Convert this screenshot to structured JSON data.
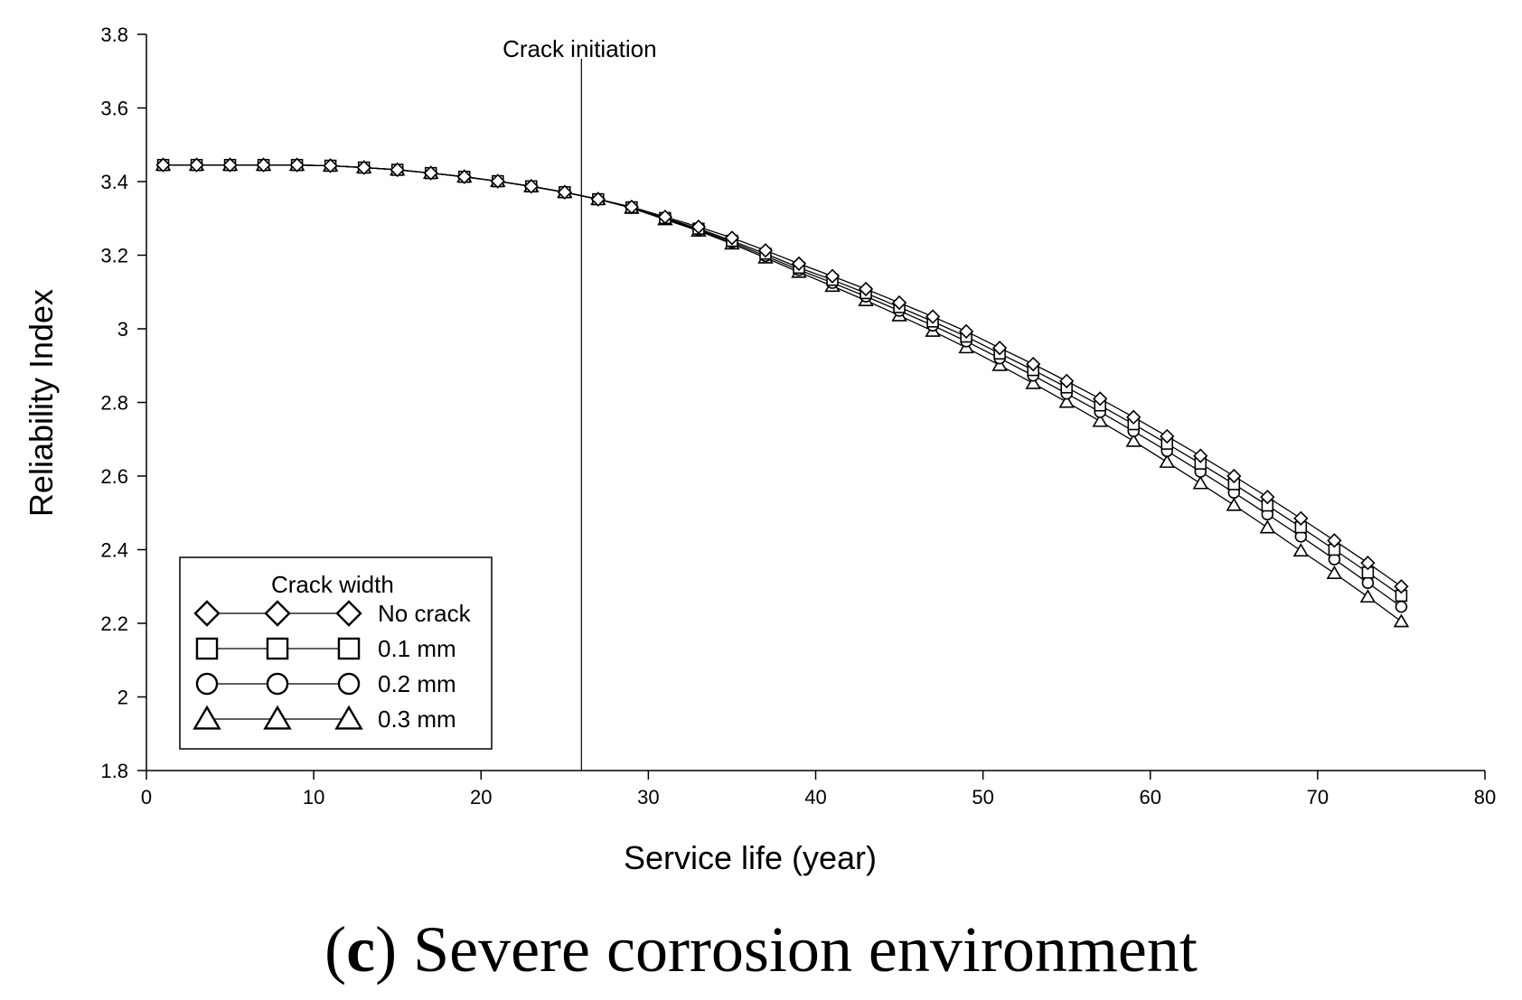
{
  "chart_data": {
    "type": "line",
    "xlabel": "Service life (year)",
    "ylabel": "Reliability Index",
    "xlim": [
      0,
      80
    ],
    "ylim": [
      1.8,
      3.8
    ],
    "xticks": [
      0,
      10,
      20,
      30,
      40,
      50,
      60,
      70,
      80
    ],
    "yticks": [
      1.8,
      2,
      2.2,
      2.4,
      2.6,
      2.8,
      3,
      3.2,
      3.4,
      3.6,
      3.8
    ],
    "ytick_labels": [
      "1.8",
      "2",
      "2.2",
      "2.4",
      "2.6",
      "2.8",
      "3",
      "3.2",
      "3.4",
      "3.6",
      "3.8"
    ],
    "grid": false,
    "annotation": {
      "label": "Crack initiation",
      "x": 26
    },
    "legend": {
      "title": "Crack width",
      "position": "bottom-left"
    },
    "x": [
      1,
      3,
      5,
      7,
      9,
      11,
      13,
      15,
      17,
      19,
      21,
      23,
      25,
      27,
      29,
      31,
      33,
      35,
      37,
      39,
      41,
      43,
      45,
      47,
      49,
      51,
      53,
      55,
      57,
      59,
      61,
      63,
      65,
      67,
      69,
      71,
      73,
      75
    ],
    "series": [
      {
        "name": "No crack",
        "marker": "diamond",
        "values": [
          3.445,
          3.445,
          3.445,
          3.445,
          3.445,
          3.443,
          3.438,
          3.432,
          3.423,
          3.413,
          3.401,
          3.387,
          3.371,
          3.352,
          3.331,
          3.304,
          3.277,
          3.247,
          3.213,
          3.177,
          3.143,
          3.108,
          3.071,
          3.033,
          2.993,
          2.948,
          2.904,
          2.858,
          2.81,
          2.76,
          2.708,
          2.655,
          2.6,
          2.543,
          2.485,
          2.425,
          2.364,
          2.3
        ]
      },
      {
        "name": "0.1 mm",
        "marker": "square",
        "values": [
          3.445,
          3.445,
          3.445,
          3.445,
          3.445,
          3.443,
          3.438,
          3.432,
          3.423,
          3.413,
          3.401,
          3.387,
          3.371,
          3.352,
          3.33,
          3.301,
          3.272,
          3.239,
          3.204,
          3.166,
          3.133,
          3.097,
          3.059,
          3.02,
          2.979,
          2.933,
          2.888,
          2.841,
          2.792,
          2.741,
          2.688,
          2.634,
          2.578,
          2.52,
          2.461,
          2.4,
          2.338,
          2.275
        ]
      },
      {
        "name": "0.2 mm",
        "marker": "circle",
        "values": [
          3.445,
          3.445,
          3.445,
          3.445,
          3.445,
          3.443,
          3.438,
          3.432,
          3.423,
          3.413,
          3.401,
          3.387,
          3.371,
          3.352,
          3.329,
          3.299,
          3.269,
          3.235,
          3.198,
          3.16,
          3.125,
          3.088,
          3.049,
          3.009,
          2.966,
          2.92,
          2.873,
          2.824,
          2.774,
          2.722,
          2.668,
          2.612,
          2.555,
          2.496,
          2.436,
          2.374,
          2.31,
          2.245
        ]
      },
      {
        "name": "0.3 mm",
        "marker": "triangle",
        "values": [
          3.445,
          3.445,
          3.445,
          3.445,
          3.445,
          3.443,
          3.438,
          3.432,
          3.423,
          3.413,
          3.401,
          3.387,
          3.371,
          3.352,
          3.328,
          3.297,
          3.266,
          3.231,
          3.193,
          3.154,
          3.116,
          3.077,
          3.036,
          2.994,
          2.949,
          2.901,
          2.852,
          2.801,
          2.749,
          2.695,
          2.638,
          2.58,
          2.521,
          2.46,
          2.397,
          2.336,
          2.272,
          2.205
        ]
      }
    ]
  },
  "caption": {
    "letter": "c",
    "open_paren": "(",
    "close_paren": ")",
    "text": " Severe corrosion environment"
  }
}
